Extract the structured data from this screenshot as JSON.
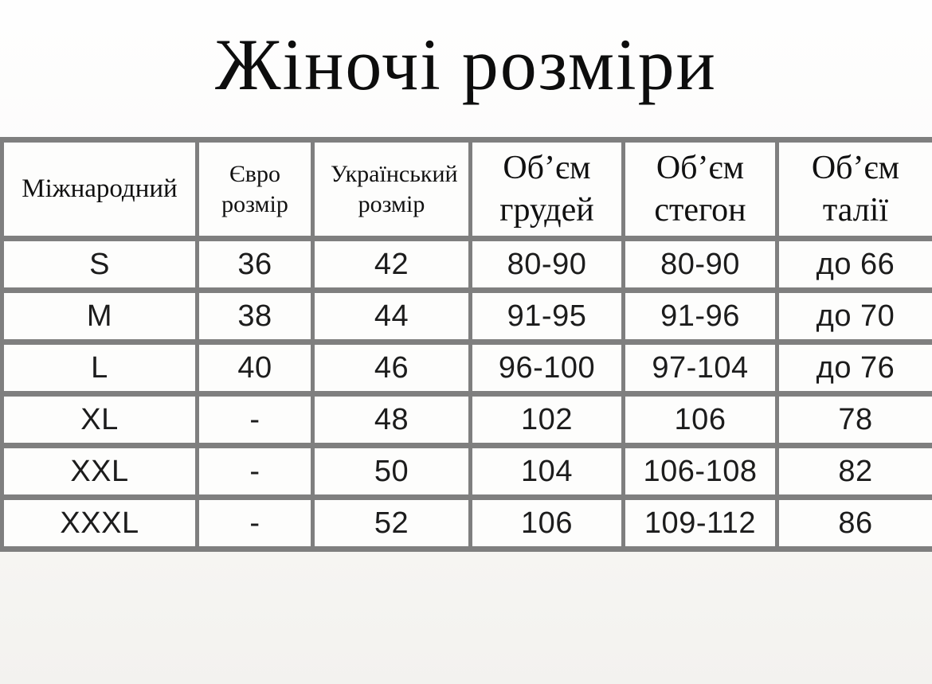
{
  "page": {
    "title": "Жіночі розміри"
  },
  "colors": {
    "border_gray": "#7f7f7f",
    "cell_background": "#fdfdfc",
    "page_background": "#f3f2ef",
    "text": "#161616"
  },
  "size_table": {
    "columns": [
      {
        "label": "Міжнародний"
      },
      {
        "label": "Євро розмір"
      },
      {
        "label": "Український розмір"
      },
      {
        "label": "Об’єм грудей"
      },
      {
        "label": "Об’єм стегон"
      },
      {
        "label": "Об’єм талії"
      }
    ],
    "rows": [
      {
        "cells": [
          "S",
          "36",
          "42",
          "80-90",
          "80-90",
          "до 66"
        ]
      },
      {
        "cells": [
          "M",
          "38",
          "44",
          "91-95",
          "91-96",
          "до 70"
        ]
      },
      {
        "cells": [
          "L",
          "40",
          "46",
          "96-100",
          "97-104",
          "до 76"
        ]
      },
      {
        "cells": [
          "XL",
          "-",
          "48",
          "102",
          "106",
          "78"
        ]
      },
      {
        "cells": [
          "XXL",
          "-",
          "50",
          "104",
          "106-108",
          "82"
        ]
      },
      {
        "cells": [
          "XXXL",
          "-",
          "52",
          "106",
          "109-112",
          "86"
        ]
      }
    ]
  }
}
